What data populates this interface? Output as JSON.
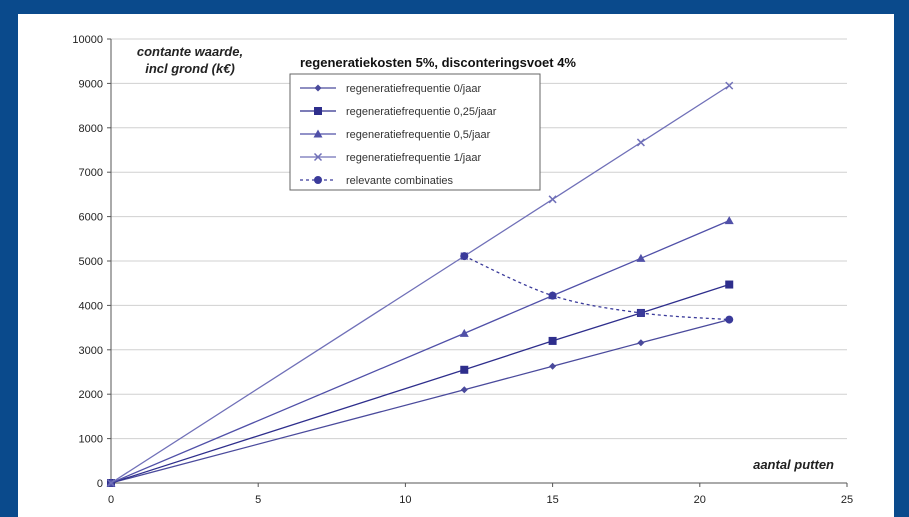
{
  "chart_data": {
    "type": "line",
    "title": "regeneratiekosten 5%, disconteringsvoet 4%",
    "ylabel_lines": [
      "contante waarde,",
      "incl grond (k€)"
    ],
    "xlabel": "aantal putten",
    "xlim": [
      0,
      25
    ],
    "ylim": [
      0,
      10000
    ],
    "x_ticks": [
      0,
      5,
      10,
      15,
      20,
      25
    ],
    "y_ticks": [
      0,
      1000,
      2000,
      3000,
      4000,
      5000,
      6000,
      7000,
      8000,
      9000,
      10000
    ],
    "grid": "horizontal",
    "legend_position": "top-center",
    "series": [
      {
        "name": "regeneratiefrequentie 0/jaar",
        "x": [
          0,
          12,
          15,
          18,
          21
        ],
        "values": [
          0,
          2100,
          2630,
          3160,
          3680
        ],
        "marker": "diamond",
        "dashed": false,
        "color": "#4a4a9c"
      },
      {
        "name": "regeneratiefrequentie 0,25/jaar",
        "x": [
          0,
          12,
          15,
          18,
          21
        ],
        "values": [
          0,
          2550,
          3200,
          3830,
          4470
        ],
        "marker": "square",
        "dashed": false,
        "color": "#2e2e8c"
      },
      {
        "name": "regeneratiefrequentie 0,5/jaar",
        "x": [
          0,
          12,
          15,
          18,
          21
        ],
        "values": [
          0,
          3370,
          4220,
          5060,
          5910
        ],
        "marker": "triangle",
        "dashed": false,
        "color": "#5050a8"
      },
      {
        "name": "regeneratiefrequentie 1/jaar",
        "x": [
          0,
          12,
          15,
          18,
          21
        ],
        "values": [
          0,
          5110,
          6390,
          7670,
          8950
        ],
        "marker": "x",
        "dashed": false,
        "color": "#7070b8"
      },
      {
        "name": "relevante combinaties",
        "x": [
          12,
          15,
          18,
          21
        ],
        "values": [
          5110,
          4220,
          3830,
          3680
        ],
        "marker": "circle",
        "dashed": true,
        "color": "#3a3a9a"
      }
    ]
  }
}
